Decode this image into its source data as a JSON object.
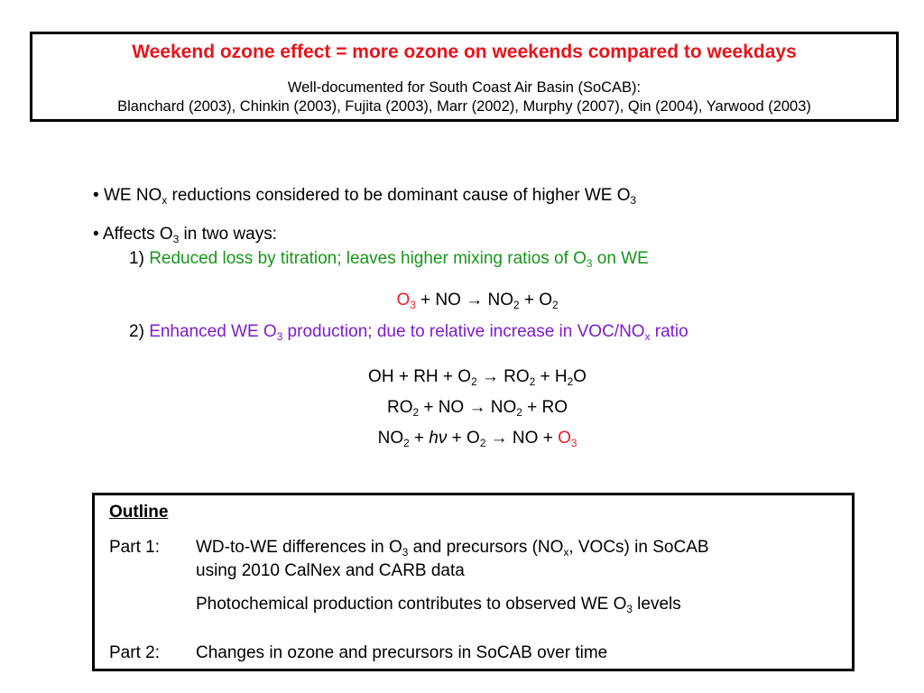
{
  "header": {
    "title": "Weekend ozone effect = more ozone on weekends compared to weekdays",
    "line1": "Well-documented for South Coast Air Basin (SoCAB):",
    "line2": "Blanchard (2003), Chinkin (2003), Fujita (2003), Marr (2002), Murphy (2007), Qin (2004), Yarwood (2003)"
  },
  "bullets": {
    "b1": {
      "bullet": "•",
      "a": "WE NO",
      "a_sub": "x",
      "b": " reductions considered to be dominant cause of higher WE O",
      "b_sub": "3"
    },
    "b2": {
      "bullet": "•",
      "a": "Affects O",
      "a_sub": "3",
      "b": " in two ways:"
    }
  },
  "way1": {
    "num": "1) ",
    "text_a": "Reduced loss by titration; leaves higher mixing ratios of O",
    "sub": "3",
    "text_b": " on WE"
  },
  "eq_titration": {
    "o": "O",
    "o_sub": "3",
    "rest": " + NO → NO",
    "no2_sub": "2",
    "plus_o": " + O",
    "o2_sub": "2"
  },
  "way2": {
    "num": "2) ",
    "text_a": "Enhanced WE O",
    "sub1": "3",
    "text_b": " production; due to relative increase in VOC/NO",
    "sub2": "x",
    "text_c": " ratio"
  },
  "eq1": {
    "a": "OH + RH + O",
    "s1": "2",
    "b": " → RO",
    "s2": "2",
    "c": " + H",
    "s3": "2",
    "d": "O"
  },
  "eq2": {
    "a": "RO",
    "s1": "2",
    "b": " + NO → NO",
    "s2": "2",
    "c": " + RO"
  },
  "eq3": {
    "a": "NO",
    "s1": "2",
    "b": " + ",
    "hv": "hν",
    "c": " + O",
    "s2": "2",
    "d": " → NO + ",
    "o": "O",
    "s3": "3"
  },
  "outline": {
    "heading": "Outline",
    "part1_label": "Part 1:",
    "part1_a": "WD-to-WE differences in O",
    "part1_sub1": "3",
    "part1_b": " and precursors (NO",
    "part1_sub2": "x",
    "part1_c": ", VOCs) in SoCAB",
    "part1_line2": "using 2010 CalNex and CARB data",
    "part1_line3_a": "Photochemical production contributes to observed WE O",
    "part1_line3_sub": "3",
    "part1_line3_b": " levels",
    "part2_label": "Part 2:",
    "part2_text": "Changes in ozone and precursors in SoCAB over time"
  },
  "colors": {
    "title": "#e8141b",
    "green": "#17961b",
    "purple": "#7d1bd1",
    "ozone": "#ee1c24"
  }
}
